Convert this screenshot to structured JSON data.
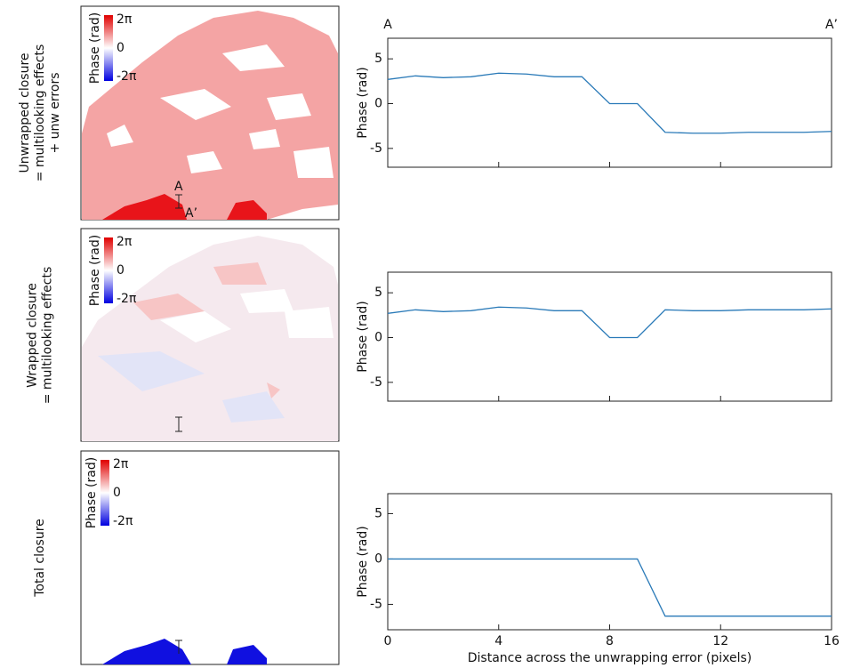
{
  "panels": [
    {
      "row_label": [
        "Unwrapped closure",
        "= multilooking effects",
        "+ unw errors"
      ],
      "colorbar": {
        "label": "Phase (rad)",
        "ticks": [
          "2π",
          "0",
          "-2π"
        ]
      },
      "markers": [
        "A",
        "A’"
      ]
    },
    {
      "row_label": [
        "Wrapped closure",
        "= multilooking effects"
      ],
      "colorbar": {
        "label": "Phase (rad)",
        "ticks": [
          "2π",
          "0",
          "-2π"
        ]
      }
    },
    {
      "row_label": [
        "Total closure"
      ],
      "colorbar": {
        "label": "Phase (rad)",
        "ticks": [
          "2π",
          "0",
          "-2π"
        ]
      }
    }
  ],
  "chart_data": [
    {
      "type": "line",
      "ylabel": "Phase (rad)",
      "annotations": [
        "A",
        "A’"
      ],
      "color": "#2a7ab8",
      "x": [
        0,
        1,
        2,
        3,
        4,
        5,
        6,
        7,
        8,
        9,
        10,
        11,
        12,
        13,
        14,
        15,
        16
      ],
      "values": [
        2.7,
        3.1,
        2.9,
        3.0,
        3.4,
        3.3,
        3.0,
        3.0,
        0,
        0,
        -3.2,
        -3.3,
        -3.3,
        -3.2,
        -3.2,
        -3.2,
        -3.1
      ],
      "xlim": [
        0,
        16
      ],
      "xticks": [
        0,
        4,
        8,
        12,
        16
      ],
      "show_xtick_labels": false,
      "ylim": [
        -7.1,
        7.3
      ],
      "yticks": [
        -5,
        0,
        5
      ]
    },
    {
      "type": "line",
      "ylabel": "Phase (rad)",
      "color": "#2a7ab8",
      "x": [
        0,
        1,
        2,
        3,
        4,
        5,
        6,
        7,
        8,
        9,
        10,
        11,
        12,
        13,
        14,
        15,
        16
      ],
      "values": [
        2.7,
        3.1,
        2.9,
        3.0,
        3.4,
        3.3,
        3.0,
        3.0,
        0,
        0,
        3.1,
        3.0,
        3.0,
        3.1,
        3.1,
        3.1,
        3.2
      ],
      "xlim": [
        0,
        16
      ],
      "xticks": [
        0,
        4,
        8,
        12,
        16
      ],
      "show_xtick_labels": false,
      "ylim": [
        -7.1,
        7.3
      ],
      "yticks": [
        -5,
        0,
        5
      ]
    },
    {
      "type": "line",
      "ylabel": "Phase (rad)",
      "xlabel": "Distance across the unwrapping error (pixels)",
      "color": "#2a7ab8",
      "x": [
        0,
        1,
        2,
        3,
        4,
        5,
        6,
        7,
        8,
        9,
        10,
        11,
        12,
        13,
        14,
        15,
        16
      ],
      "values": [
        0,
        0,
        0,
        0,
        0,
        0,
        0,
        0,
        0,
        0,
        -6.3,
        -6.3,
        -6.3,
        -6.3,
        -6.3,
        -6.3,
        -6.3
      ],
      "xlim": [
        0,
        16
      ],
      "xticks": [
        0,
        4,
        8,
        12,
        16
      ],
      "show_xtick_labels": true,
      "ylim": [
        -7.8,
        7.2
      ],
      "yticks": [
        -5,
        0,
        5
      ]
    }
  ]
}
